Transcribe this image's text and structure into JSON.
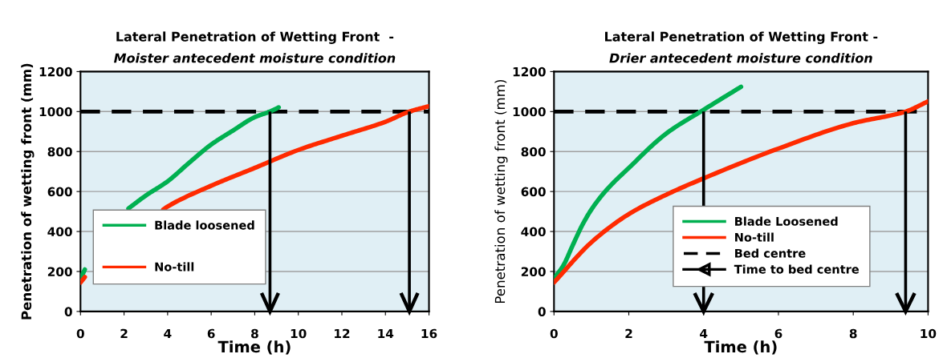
{
  "chart_data": [
    {
      "type": "line",
      "title": "Lateral Penetration of Wetting Front  -",
      "subtitle": "Moister antecedent moisture condition",
      "xlabel": "Time (h)",
      "ylabel": "Penetration of wetting front (mm)",
      "xlim": [
        0,
        16
      ],
      "xticks": [
        0,
        2,
        4,
        6,
        8,
        10,
        12,
        14,
        16
      ],
      "ylim": [
        0,
        1200
      ],
      "yticks": [
        0,
        200,
        400,
        600,
        800,
        1000,
        1200
      ],
      "grid": "y",
      "legend": "bottom left",
      "series": [
        {
          "name": "Blade loosened",
          "color": "#00b050",
          "x": [
            0,
            0.2,
            1,
            2.2,
            3,
            4,
            5,
            6,
            7,
            8,
            8.7,
            9.1
          ],
          "values": [
            164,
            210,
            null,
            515,
            580,
            651,
            745,
            835,
            905,
            972,
            1000,
            1021
          ]
        },
        {
          "name": "No-till",
          "color": "#ff2a00",
          "x": [
            0,
            0.2,
            2,
            3.8,
            4,
            6,
            8,
            10,
            12,
            14,
            15.1,
            16
          ],
          "values": [
            145,
            172,
            null,
            510,
            525,
            629,
            718,
            808,
            879,
            949,
            1000,
            1027
          ]
        },
        {
          "color": "#000000",
          "line_style": "dashed",
          "x": [
            0,
            16
          ],
          "values": [
            1000,
            1000
          ]
        },
        {
          "color": "#000000",
          "x": [
            8.7,
            8.7
          ],
          "values": [
            1000,
            0
          ]
        },
        {
          "color": "#000000",
          "x": [
            15.1,
            15.1
          ],
          "values": [
            1000,
            0
          ]
        }
      ]
    },
    {
      "type": "line",
      "title": "Lateral Penetration of Wetting Front -",
      "subtitle": "Drier antecedent moisture condition",
      "xlabel": "Time (h)",
      "ylabel": "Penetration of wetting front (mm)",
      "xlim": [
        0,
        10
      ],
      "xticks": [
        0,
        2,
        4,
        6,
        8,
        10
      ],
      "ylim": [
        0,
        1200
      ],
      "yticks": [
        0,
        200,
        400,
        600,
        800,
        1000,
        1200
      ],
      "grid": "y",
      "legend": "bottom right",
      "series": [
        {
          "name": "Blade Loosened",
          "color": "#00b050",
          "x": [
            0,
            0.25,
            0.5,
            0.75,
            1,
            1.4,
            2,
            3,
            4,
            5
          ],
          "values": [
            165,
            230,
            331,
            430,
            510,
            607,
            718,
            890,
            1009,
            1124
          ]
        },
        {
          "name": "No-till",
          "color": "#ff2a00",
          "x": [
            0,
            1,
            2,
            3,
            4,
            6,
            8,
            9.4,
            10
          ],
          "values": [
            145,
            346,
            487,
            584,
            666,
            815,
            942,
            1000,
            1051
          ]
        },
        {
          "name": "Bed centre",
          "color": "#000000",
          "line_style": "dashed",
          "x": [
            0,
            10
          ],
          "values": [
            1000,
            1000
          ]
        },
        {
          "name": "Time to bed centre",
          "color": "#000000",
          "x": [
            4,
            4
          ],
          "values": [
            1000,
            0
          ]
        },
        {
          "color": "#000000",
          "x": [
            9.4,
            9.4
          ],
          "values": [
            1000,
            0
          ]
        }
      ]
    }
  ]
}
